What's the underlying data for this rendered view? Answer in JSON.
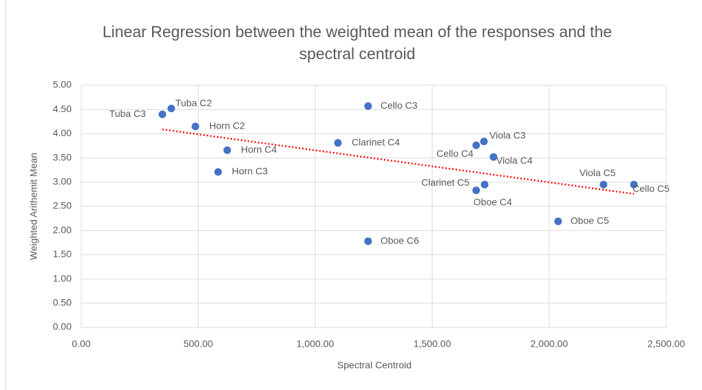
{
  "chart_data": {
    "type": "scatter",
    "title": "Linear Regression between the weighted mean of the responses and the spectral centroid",
    "xlabel": "Spectral Centroid",
    "ylabel": "Weighted Arithemit Mean",
    "color": "#4472c4",
    "trendline_color": "#ff0000",
    "grid": true,
    "point_labels": [
      "Tuba C3",
      "Tuba C2",
      "Horn C2",
      "Horn C4",
      "Horn C3",
      "Clarinet C4",
      "Cello C3",
      "Oboe C6",
      "Cello C4",
      "Viola C3",
      "Viola C4",
      "Clarinet C5",
      "Oboe C4",
      "Oboe C5",
      "Viola C5",
      "Cello C5"
    ],
    "x": [
      347,
      385,
      488,
      624,
      585,
      1097,
      1226,
      1226,
      1688,
      1721,
      1762,
      1724,
      1688,
      2038,
      2232,
      2362
    ],
    "y": [
      4.4,
      4.52,
      4.15,
      3.66,
      3.21,
      3.81,
      4.57,
      1.78,
      3.76,
      3.84,
      3.52,
      2.95,
      2.83,
      2.19,
      2.95,
      2.95
    ],
    "xlim": [
      0,
      2500
    ],
    "xticks": [
      {
        "value": 0,
        "label": "0.00"
      },
      {
        "value": 500,
        "label": "500.00"
      },
      {
        "value": 1000,
        "label": "1,000.00"
      },
      {
        "value": 1500,
        "label": "1,500.00"
      },
      {
        "value": 2000,
        "label": "2,000.00"
      },
      {
        "value": 2500,
        "label": "2,500.00"
      }
    ],
    "ylim": [
      0,
      5
    ],
    "yticks": [
      {
        "value": 0,
        "label": "0.00"
      },
      {
        "value": 0.5,
        "label": "0.50"
      },
      {
        "value": 1,
        "label": "1.00"
      },
      {
        "value": 1.5,
        "label": "1.50"
      },
      {
        "value": 2,
        "label": "2.00"
      },
      {
        "value": 2.5,
        "label": "2.50"
      },
      {
        "value": 3,
        "label": "3.00"
      },
      {
        "value": 3.5,
        "label": "3.50"
      },
      {
        "value": 4,
        "label": "4.00"
      },
      {
        "value": 4.5,
        "label": "4.50"
      },
      {
        "value": 5,
        "label": "5.00"
      }
    ]
  }
}
